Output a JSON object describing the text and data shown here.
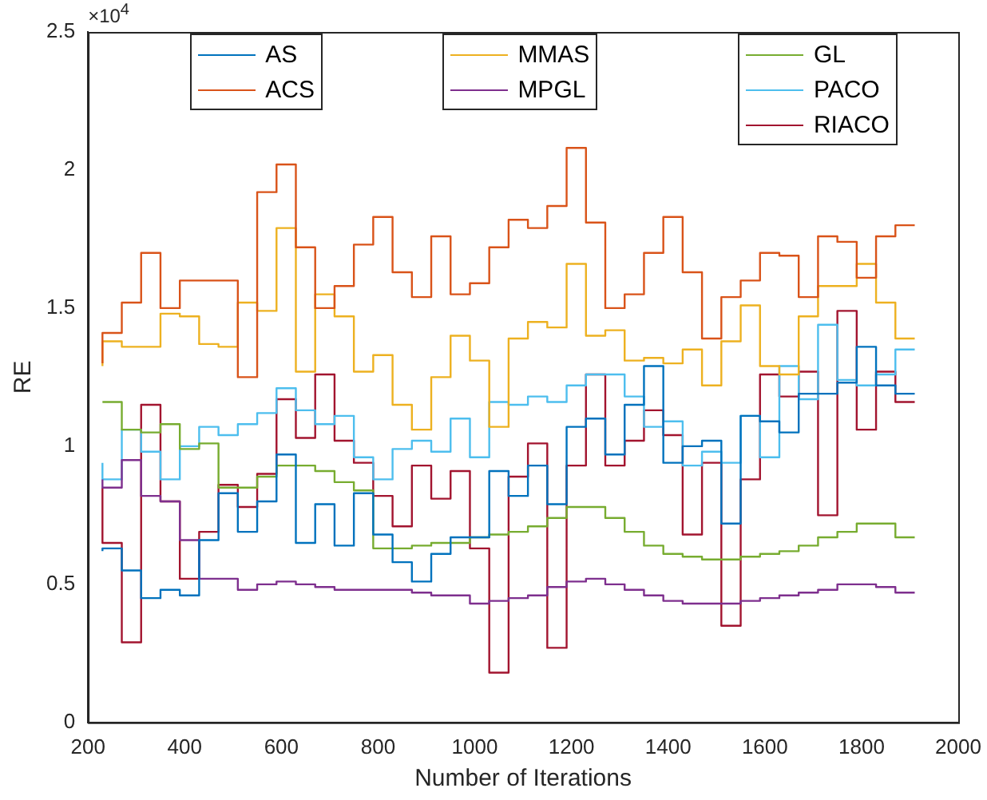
{
  "chart_data": {
    "type": "step",
    "xlabel": "Number of Iterations",
    "ylabel": "RE",
    "annotations": [
      "×10$^{4}$"
    ],
    "x": [
      230,
      270,
      310,
      350,
      390,
      430,
      470,
      510,
      550,
      590,
      630,
      670,
      710,
      750,
      790,
      830,
      870,
      910,
      950,
      990,
      1030,
      1070,
      1110,
      1150,
      1190,
      1230,
      1270,
      1310,
      1350,
      1390,
      1430,
      1470,
      1510,
      1550,
      1590,
      1630,
      1670,
      1710,
      1750,
      1790,
      1830,
      1870,
      1910
    ],
    "xlim": [
      200,
      2000
    ],
    "xticks": [
      200,
      400,
      600,
      800,
      1000,
      1200,
      1400,
      1600,
      1800,
      2000
    ],
    "ylim": [
      0,
      2.5
    ],
    "yticks": [
      0,
      0.5,
      1,
      1.5,
      2,
      2.5
    ],
    "legend": "top",
    "grid": false,
    "series": [
      {
        "name": "AS",
        "color": "#0072bd",
        "values": [
          0.62,
          0.63,
          0.55,
          0.45,
          0.48,
          0.46,
          0.66,
          0.83,
          0.69,
          0.8,
          0.97,
          0.65,
          0.79,
          0.64,
          0.83,
          0.68,
          0.58,
          0.51,
          0.61,
          0.67,
          0.67,
          0.91,
          0.82,
          0.93,
          0.79,
          1.07,
          1.1,
          0.97,
          1.15,
          1.29,
          0.94,
          1.0,
          1.02,
          0.72,
          1.11,
          1.09,
          1.05,
          1.19,
          1.19,
          1.23,
          1.36,
          1.22,
          1.19
        ]
      },
      {
        "name": "ACS",
        "color": "#d95319",
        "values": [
          1.3,
          1.41,
          1.52,
          1.7,
          1.5,
          1.6,
          1.6,
          1.6,
          1.25,
          1.92,
          2.02,
          1.72,
          1.5,
          1.58,
          1.73,
          1.83,
          1.63,
          1.54,
          1.76,
          1.55,
          1.59,
          1.72,
          1.82,
          1.79,
          1.87,
          2.08,
          1.81,
          1.5,
          1.55,
          1.7,
          1.83,
          1.63,
          1.39,
          1.54,
          1.6,
          1.7,
          1.69,
          1.54,
          1.76,
          1.74,
          1.61,
          1.76,
          1.8
        ]
      },
      {
        "name": "MMAS",
        "color": "#edb120",
        "values": [
          1.29,
          1.38,
          1.36,
          1.36,
          1.48,
          1.47,
          1.37,
          1.36,
          1.52,
          1.49,
          1.79,
          1.27,
          1.55,
          1.47,
          1.27,
          1.33,
          1.15,
          1.06,
          1.25,
          1.4,
          1.31,
          1.07,
          1.39,
          1.45,
          1.43,
          1.66,
          1.4,
          1.42,
          1.31,
          1.32,
          1.3,
          1.35,
          1.22,
          1.38,
          1.51,
          1.29,
          1.26,
          1.47,
          1.58,
          1.58,
          1.66,
          1.52,
          1.39
        ]
      },
      {
        "name": "MPGL",
        "color": "#7e2f8e",
        "values": [
          0.88,
          0.85,
          0.95,
          0.82,
          0.8,
          0.66,
          0.52,
          0.52,
          0.48,
          0.5,
          0.51,
          0.5,
          0.49,
          0.48,
          0.48,
          0.48,
          0.48,
          0.47,
          0.46,
          0.46,
          0.43,
          0.44,
          0.45,
          0.46,
          0.49,
          0.51,
          0.52,
          0.5,
          0.48,
          0.46,
          0.44,
          0.43,
          0.43,
          0.43,
          0.44,
          0.45,
          0.46,
          0.47,
          0.48,
          0.5,
          0.5,
          0.49,
          0.47
        ]
      },
      {
        "name": "GL",
        "color": "#77ac30",
        "values": [
          1.16,
          1.16,
          1.06,
          1.05,
          1.08,
          0.99,
          1.01,
          0.85,
          0.85,
          0.89,
          0.93,
          0.93,
          0.91,
          0.87,
          0.84,
          0.63,
          0.63,
          0.64,
          0.65,
          0.65,
          0.67,
          0.68,
          0.69,
          0.71,
          0.74,
          0.78,
          0.78,
          0.74,
          0.69,
          0.64,
          0.61,
          0.6,
          0.59,
          0.59,
          0.6,
          0.61,
          0.62,
          0.64,
          0.67,
          0.69,
          0.72,
          0.72,
          0.67
        ]
      },
      {
        "name": "PACO",
        "color": "#4dbeee",
        "values": [
          0.94,
          0.88,
          1.06,
          0.98,
          0.88,
          1.0,
          1.07,
          1.04,
          1.08,
          1.12,
          1.21,
          1.13,
          1.08,
          1.11,
          0.96,
          0.88,
          0.99,
          1.02,
          0.98,
          1.1,
          0.96,
          1.16,
          1.15,
          1.18,
          1.16,
          1.22,
          1.26,
          1.26,
          1.18,
          1.07,
          1.09,
          0.93,
          0.98,
          0.94,
          1.11,
          0.96,
          1.29,
          1.17,
          1.44,
          1.24,
          1.22,
          1.26,
          1.35
        ]
      },
      {
        "name": "RIACO",
        "color": "#a2142f",
        "values": [
          0.85,
          0.65,
          0.29,
          1.15,
          0.8,
          0.52,
          0.69,
          0.86,
          0.78,
          0.9,
          1.17,
          1.03,
          1.26,
          1.02,
          0.94,
          0.82,
          0.71,
          0.93,
          0.81,
          0.91,
          0.63,
          0.18,
          0.89,
          1.01,
          0.27,
          0.93,
          1.26,
          0.93,
          1.02,
          1.13,
          1.04,
          0.68,
          0.94,
          0.35,
          0.88,
          1.26,
          1.18,
          1.27,
          0.75,
          1.49,
          1.06,
          1.27,
          1.16
        ]
      }
    ]
  }
}
